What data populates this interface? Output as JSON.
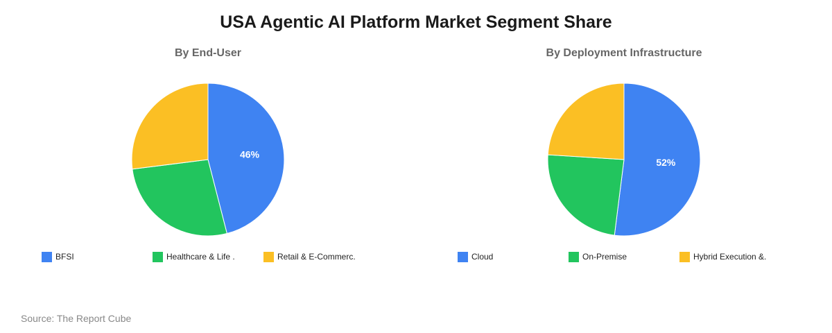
{
  "title": "USA Agentic AI Platform Market Segment Share",
  "source": "Source: The Report Cube",
  "colors": {
    "blue": "#3f83f2",
    "green": "#22c55e",
    "yellow": "#fbbf24"
  },
  "chart_data": [
    {
      "type": "pie",
      "subtitle": "By End-User",
      "slices": [
        {
          "label": "BFSI",
          "value": 46,
          "color": "#3f83f2",
          "data_label": "46%"
        },
        {
          "label": "Healthcare & Life .",
          "value": 27,
          "color": "#22c55e",
          "data_label": ""
        },
        {
          "label": "Retail & E-Commerc.",
          "value": 27,
          "color": "#fbbf24",
          "data_label": ""
        }
      ]
    },
    {
      "type": "pie",
      "subtitle": "By Deployment Infrastructure",
      "slices": [
        {
          "label": "Cloud",
          "value": 52,
          "color": "#3f83f2",
          "data_label": "52%"
        },
        {
          "label": "On-Premise",
          "value": 24,
          "color": "#22c55e",
          "data_label": ""
        },
        {
          "label": "Hybrid Execution &.",
          "value": 24,
          "color": "#fbbf24",
          "data_label": ""
        }
      ]
    }
  ]
}
